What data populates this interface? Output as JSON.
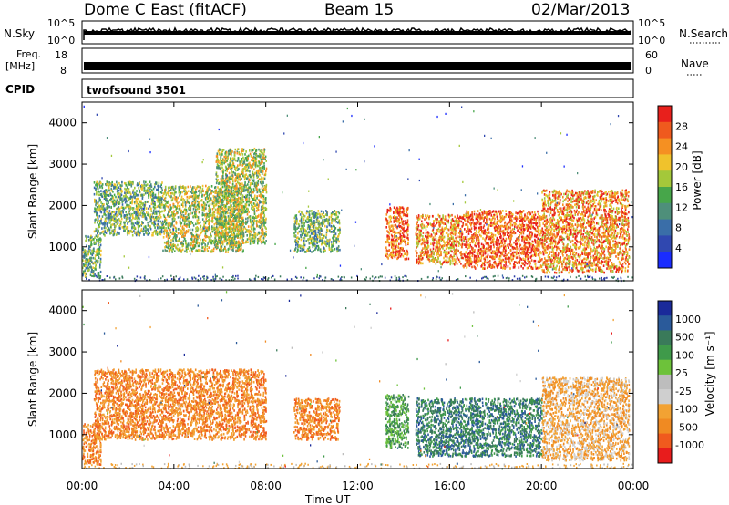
{
  "header": {
    "station": "Dome C East (fitACF)",
    "beam": "Beam 15",
    "date": "02/Mar/2013"
  },
  "strips": {
    "nsky_label": "N.Sky",
    "nsky_ticks": [
      "10^5",
      "10^0"
    ],
    "nsearch_label": "N.Search",
    "freq_label_line1": "Freq.",
    "freq_label_line2": "[MHz]",
    "freq_ticks": [
      "18",
      "8"
    ],
    "nave_label": "Nave",
    "nave_ticks": [
      "60",
      "0"
    ],
    "cpid_label": "CPID",
    "cpid_value": "twofsound 3501"
  },
  "panels": {
    "power": {
      "ylabel": "Slant Range [km]",
      "cbar_label": "Power [dB]",
      "cbar_ticks": [
        "28",
        "24",
        "20",
        "16",
        "12",
        "8",
        "4"
      ]
    },
    "velocity": {
      "ylabel": "Slant Range [km]",
      "cbar_label": "Velocity [m s⁻¹]",
      "cbar_ticks": [
        "1000",
        "500",
        "100",
        "25",
        "-25",
        "-100",
        "-500",
        "-1000"
      ]
    }
  },
  "xaxis": {
    "label": "Time UT",
    "ticks": [
      "00:00",
      "04:00",
      "08:00",
      "12:00",
      "16:00",
      "20:00",
      "00:00"
    ]
  },
  "chart_data": [
    {
      "type": "heatmap",
      "name": "power",
      "title": "Dome C East (fitACF)  Beam 15  02/Mar/2013",
      "xlabel": "Time UT",
      "ylabel": "Slant Range [km]",
      "xlim": [
        "00:00",
        "24:00"
      ],
      "ylim": [
        180,
        4500
      ],
      "yticks": [
        1000,
        2000,
        3000,
        4000
      ],
      "colorbar": {
        "label": "Power [dB]",
        "range": [
          0,
          30
        ],
        "ticks": [
          4,
          8,
          12,
          16,
          20,
          24,
          28
        ]
      },
      "echo_regions": [
        {
          "t_start": 0.0,
          "t_end": 0.8,
          "range_km": [
            300,
            1300
          ],
          "power_db": 12
        },
        {
          "t_start": 0.5,
          "t_end": 3.5,
          "range_km": [
            1300,
            2600
          ],
          "power_db": 13
        },
        {
          "t_start": 3.5,
          "t_end": 7.0,
          "range_km": [
            900,
            2500
          ],
          "power_db": 17
        },
        {
          "t_start": 5.8,
          "t_end": 8.0,
          "range_km": [
            1100,
            3400
          ],
          "power_db": 15
        },
        {
          "t_start": 9.2,
          "t_end": 11.2,
          "range_km": [
            900,
            1900
          ],
          "power_db": 12
        },
        {
          "t_start": 13.2,
          "t_end": 14.2,
          "range_km": [
            700,
            2000
          ],
          "power_db": 26
        },
        {
          "t_start": 14.5,
          "t_end": 16.5,
          "range_km": [
            600,
            1800
          ],
          "power_db": 24
        },
        {
          "t_start": 16.5,
          "t_end": 20.0,
          "range_km": [
            500,
            1900
          ],
          "power_db": 26
        },
        {
          "t_start": 20.0,
          "t_end": 23.8,
          "range_km": [
            400,
            2400
          ],
          "power_db": 22
        }
      ]
    },
    {
      "type": "heatmap",
      "name": "velocity",
      "xlabel": "Time UT",
      "ylabel": "Slant Range [km]",
      "xlim": [
        "00:00",
        "24:00"
      ],
      "ylim": [
        180,
        4500
      ],
      "yticks": [
        1000,
        2000,
        3000,
        4000
      ],
      "colorbar": {
        "label": "Velocity [m s⁻¹]",
        "range": [
          -1000,
          1000
        ],
        "ticks": [
          1000,
          500,
          100,
          25,
          -25,
          -100,
          -500,
          -1000
        ]
      },
      "echo_regions": [
        {
          "t_start": 0.0,
          "t_end": 0.8,
          "range_km": [
            300,
            1300
          ],
          "velocity": -150
        },
        {
          "t_start": 0.5,
          "t_end": 8.0,
          "range_km": [
            900,
            2600
          ],
          "velocity": -250
        },
        {
          "t_start": 9.2,
          "t_end": 11.2,
          "range_km": [
            900,
            1900
          ],
          "velocity": -120
        },
        {
          "t_start": 13.2,
          "t_end": 14.2,
          "range_km": [
            700,
            2000
          ],
          "velocity": 100
        },
        {
          "t_start": 14.5,
          "t_end": 20.0,
          "range_km": [
            500,
            1900
          ],
          "velocity": 500
        },
        {
          "t_start": 20.0,
          "t_end": 23.8,
          "range_km": [
            400,
            2400
          ],
          "velocity": -80
        }
      ]
    }
  ]
}
